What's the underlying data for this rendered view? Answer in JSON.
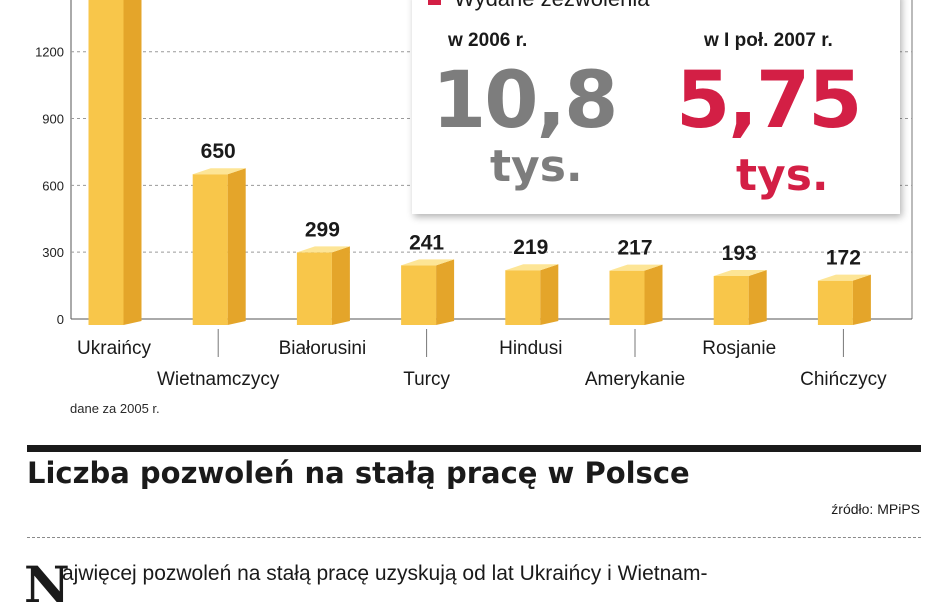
{
  "chart_data": {
    "type": "bar",
    "categories": [
      "Ukraińcy",
      "Wietnamczycy",
      "Białorusini",
      "Turcy",
      "Hindusi",
      "Amerykanie",
      "Rosjanie",
      "Chińczycy"
    ],
    "values": [
      1500,
      650,
      299,
      241,
      219,
      217,
      193,
      172
    ],
    "data_labels": [
      "",
      "650",
      "299",
      "241",
      "219",
      "217",
      "193",
      "172"
    ],
    "y_ticks": [
      0,
      300,
      600,
      900,
      1200
    ],
    "ylim": [
      0,
      1450
    ],
    "grid": true,
    "bar_color": "#f8c64a"
  },
  "note": "dane za 2005 r.",
  "callout": {
    "legend_label": "Wydane zezwolenia",
    "legend_color": "#d31f45",
    "period1": "w 2006 r.",
    "value1": "10,8",
    "unit1": "tys.",
    "period2": "w I poł. 2007 r.",
    "value2": "5,75",
    "unit2": "tys."
  },
  "headline": "Liczba pozwoleń na stałą pracę w Polsce",
  "source": "źródło: MPiPS",
  "article": {
    "dropcap": "N",
    "first_line": "ajwięcej pozwoleń na stałą pracę uzyskują od lat Ukraińcy i Wietnam-"
  }
}
